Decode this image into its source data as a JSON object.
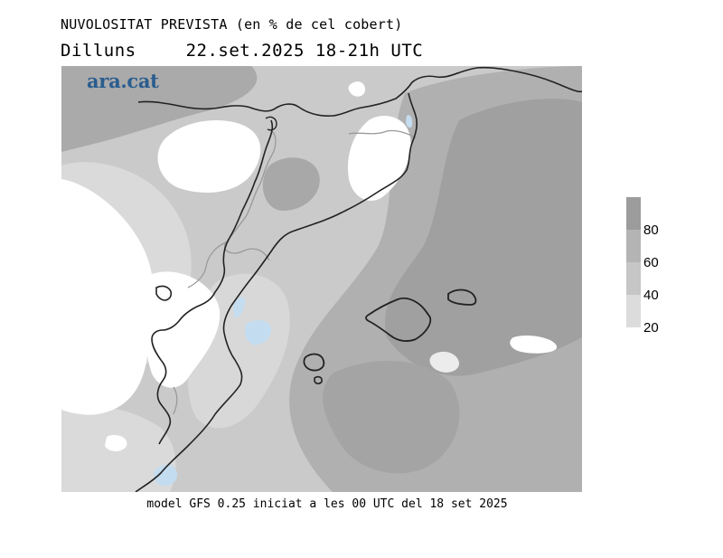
{
  "header": {
    "title": "NUVOLOSITAT PREVISTA (en % de cel cobert)",
    "day": "Dilluns",
    "datetime": "22.set.2025 18-21h UTC"
  },
  "logo": {
    "text": "ara.cat",
    "color": "#2a5d8f"
  },
  "footer": {
    "text": "model GFS 0.25 iniciat a les 00 UTC del 18 set 2025"
  },
  "legend": {
    "unit": "%",
    "bands": [
      {
        "label": "80",
        "color": "#9c9c9c"
      },
      {
        "label": "60",
        "color": "#b4b4b4"
      },
      {
        "label": "40",
        "color": "#c6c6c6"
      },
      {
        "label": "20",
        "color": "#dcdcdc"
      }
    ]
  },
  "colors": {
    "clear": "#ffffff",
    "low": "#dcdcdc",
    "mid": "#c6c6c6",
    "high": "#b4b4b4",
    "very_high": "#9c9c9c",
    "water": "#c4dcef",
    "border": "#222222",
    "region_border": "#9a9a9a"
  }
}
